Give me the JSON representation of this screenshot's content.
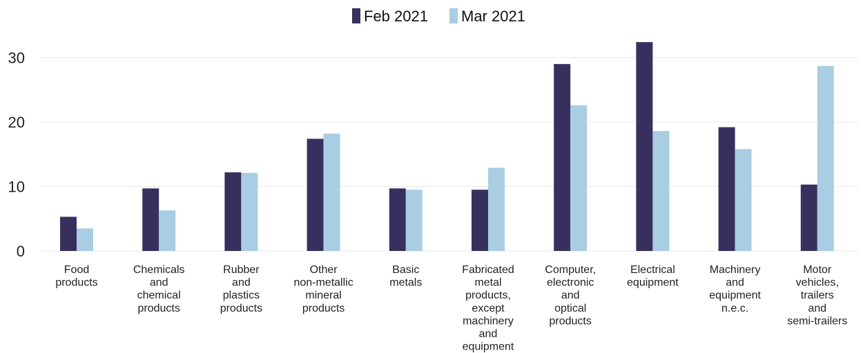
{
  "chart_data": {
    "type": "bar",
    "categories": [
      "Food products",
      "Chemicals and chemical products",
      "Rubber and plastics products",
      "Other non-metallic mineral products",
      "Basic metals",
      "Fabricated metal products, except machinery and equipment",
      "Computer, electronic and optical products",
      "Electrical equipment",
      "Machinery and equipment n.e.c.",
      "Motor vehicles, trailers and semi-trailers"
    ],
    "category_label_lines": [
      [
        "Food",
        "products"
      ],
      [
        "Chemicals",
        "and",
        "chemical",
        "products"
      ],
      [
        "Rubber",
        "and",
        "plastics",
        "products"
      ],
      [
        "Other",
        "non-metallic",
        "mineral",
        "products"
      ],
      [
        "Basic",
        "metals"
      ],
      [
        "Fabricated",
        "metal",
        "products,",
        "except",
        "machinery",
        "and",
        "equipment"
      ],
      [
        "Computer,",
        "electronic",
        "and",
        "optical",
        "products"
      ],
      [
        "Electrical",
        "equipment"
      ],
      [
        "Machinery",
        "and",
        "equipment",
        "n.e.c."
      ],
      [
        "Motor",
        "vehicles,",
        "trailers",
        "and",
        "semi-trailers"
      ]
    ],
    "series": [
      {
        "name": "Feb 2021",
        "color": "#37305f",
        "values": [
          5.3,
          9.7,
          12.2,
          17.4,
          9.7,
          9.5,
          29.0,
          32.4,
          19.2,
          10.3
        ]
      },
      {
        "name": "Mar 2021",
        "color": "#a9cde3",
        "values": [
          3.5,
          6.3,
          12.1,
          18.2,
          9.5,
          12.9,
          22.6,
          18.6,
          15.8,
          28.7
        ]
      }
    ],
    "yticks": [
      0,
      10,
      20,
      30
    ],
    "ylim": [
      0,
      33
    ],
    "grid": true,
    "legend_position": "top-center",
    "title": "",
    "xlabel": "",
    "ylabel": ""
  }
}
